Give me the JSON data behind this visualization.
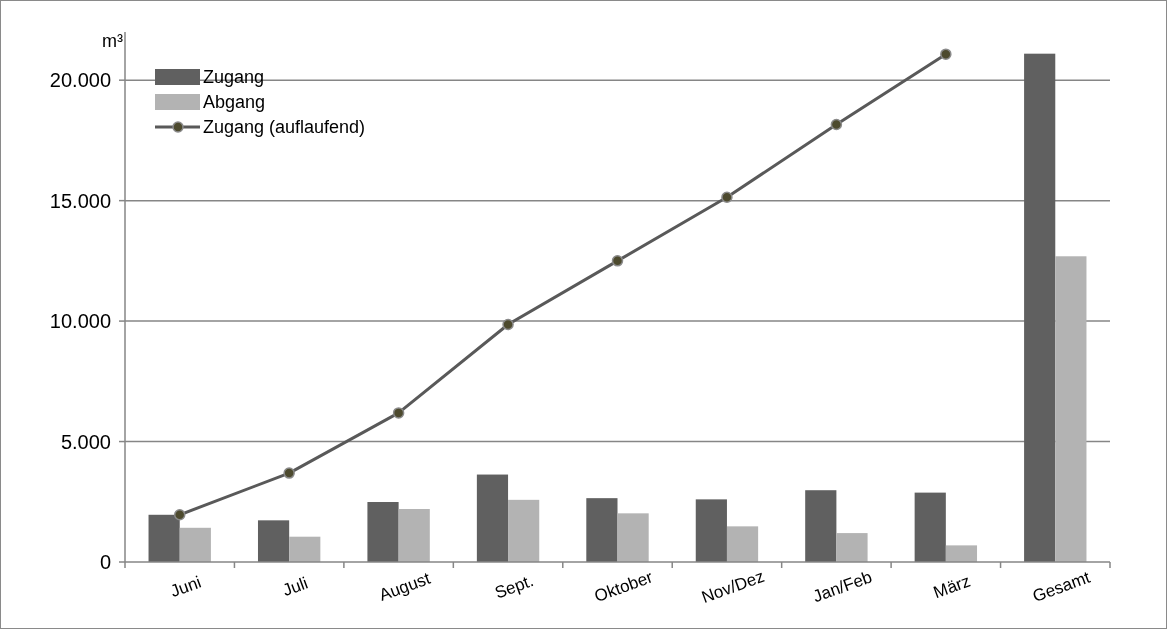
{
  "chart_data": {
    "type": "bar",
    "ylabel": "m³",
    "categories": [
      "Juni",
      "Juli",
      "August",
      "Sept.",
      "Oktober",
      "Nov/Dez",
      "Jan/Feb",
      "März",
      "Gesamt"
    ],
    "series": [
      {
        "name": "Zugang",
        "color": "#606060",
        "values": [
          1960,
          1730,
          2490,
          3630,
          2650,
          2600,
          2980,
          2880,
          21100
        ]
      },
      {
        "name": "Abgang",
        "color": "#b3b3b3",
        "values": [
          1420,
          1050,
          2200,
          2580,
          2020,
          1480,
          1200,
          690,
          12690
        ]
      },
      {
        "name": "Zugang (auflaufend)",
        "type": "line",
        "color": "#595959",
        "marker": "circle",
        "values": [
          1960,
          3690,
          6190,
          9860,
          12500,
          15140,
          18160,
          21080,
          null
        ]
      }
    ],
    "ylim": [
      0,
      22000
    ],
    "yticks": [
      {
        "value": 0,
        "label": "0"
      },
      {
        "value": 5000,
        "label": "5.000"
      },
      {
        "value": 10000,
        "label": "10.000"
      },
      {
        "value": 15000,
        "label": "15.000"
      },
      {
        "value": 20000,
        "label": "20.000"
      }
    ],
    "grid": "y",
    "legend": "top left"
  }
}
